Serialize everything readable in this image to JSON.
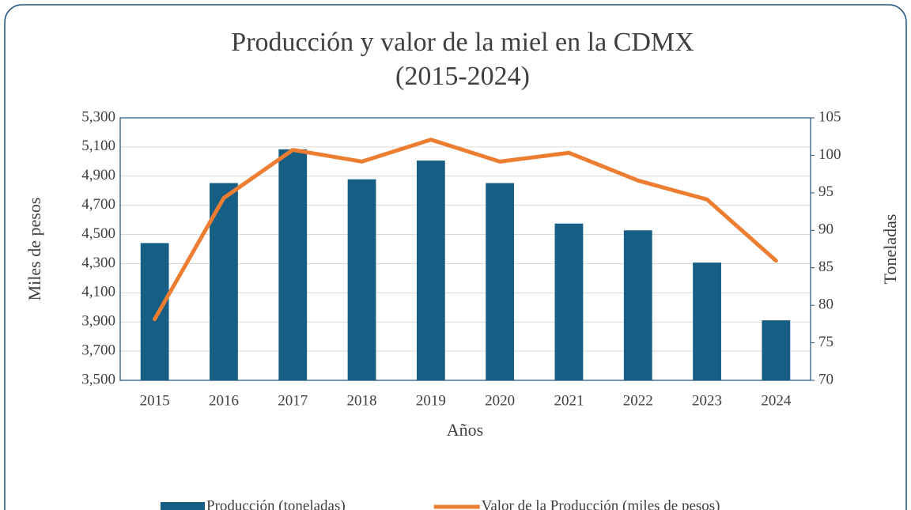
{
  "chart_data": {
    "type": "bar_line",
    "title": "Producción y valor de la miel en la CDMX",
    "subtitle": "(2015-2024)",
    "xlabel": "Años",
    "ylabel": "Miles de pesos",
    "y2label": "Toneladas",
    "categories": [
      "2015",
      "2016",
      "2017",
      "2018",
      "2019",
      "2020",
      "2021",
      "2022",
      "2023",
      "2024"
    ],
    "series": [
      {
        "name": "Producción (toneladas)",
        "type": "bar",
        "axis": "y2",
        "color": "#165e83",
        "values": [
          88.3,
          96.3,
          100.8,
          96.8,
          99.3,
          96.3,
          90.9,
          90.0,
          85.7,
          78.0
        ]
      },
      {
        "name": "Valor de la Producción (miles de pesos)",
        "type": "line",
        "axis": "y",
        "color": "#ed7d31",
        "values": [
          3920,
          4750,
          5080,
          5000,
          5150,
          5000,
          5060,
          4870,
          4740,
          4320
        ]
      }
    ],
    "ylim": [
      3500,
      5300
    ],
    "yticks": [
      {
        "value": 3500,
        "label": "3,500"
      },
      {
        "value": 3700,
        "label": "3,700"
      },
      {
        "value": 3900,
        "label": "3,900"
      },
      {
        "value": 4100,
        "label": "4,100"
      },
      {
        "value": 4300,
        "label": "4,300"
      },
      {
        "value": 4500,
        "label": "4,500"
      },
      {
        "value": 4700,
        "label": "4,700"
      },
      {
        "value": 4900,
        "label": "4,900"
      },
      {
        "value": 5100,
        "label": "5,100"
      },
      {
        "value": 5300,
        "label": "5,300"
      }
    ],
    "y2lim": [
      70,
      105
    ],
    "y2ticks": [
      70,
      75,
      80,
      85,
      90,
      95,
      100,
      105
    ],
    "grid": true,
    "legend": "bottom"
  }
}
